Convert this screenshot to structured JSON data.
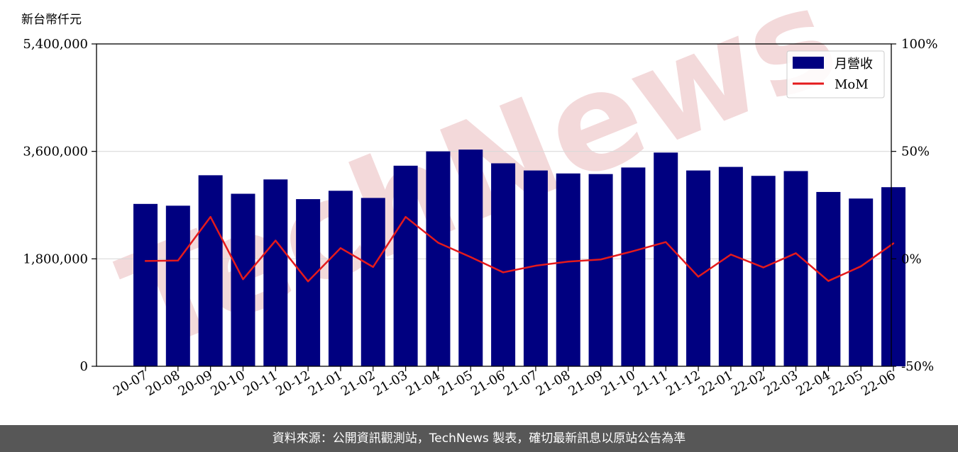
{
  "footer": {
    "source_text": "資料來源：公開資訊觀測站，TechNews 製表，確切最新訊息以原站公告為準"
  },
  "watermark": {
    "text": "TechNews",
    "color": "#f3d9da"
  },
  "colors": {
    "bar": "#000080",
    "line": "#e41a1c",
    "grid": "#d9d9d9"
  },
  "chart_data": {
    "type": "bar",
    "y_unit_label": "新台幣仟元",
    "categories": [
      "20-07",
      "20-08",
      "20-09",
      "20-10",
      "20-11",
      "20-12",
      "21-01",
      "21-02",
      "21-03",
      "21-04",
      "21-05",
      "21-06",
      "21-07",
      "21-08",
      "21-09",
      "21-10",
      "21-11",
      "21-12",
      "22-01",
      "22-02",
      "22-03",
      "22-04",
      "22-05",
      "22-06"
    ],
    "series": [
      {
        "name": "月營收",
        "type": "bar",
        "axis": "left",
        "values": [
          2720000,
          2690000,
          3200000,
          2890000,
          3130000,
          2800000,
          2940000,
          2820000,
          3360000,
          3600000,
          3630000,
          3400000,
          3280000,
          3230000,
          3220000,
          3330000,
          3580000,
          3280000,
          3340000,
          3190000,
          3270000,
          2920000,
          2810000,
          3000000
        ]
      },
      {
        "name": "MoM",
        "type": "line",
        "axis": "right",
        "values": [
          -1.0,
          -0.8,
          19.5,
          -9.5,
          8.5,
          -10.5,
          5.0,
          -3.8,
          19.5,
          7.5,
          0.8,
          -6.3,
          -3.2,
          -1.3,
          -0.3,
          3.6,
          7.8,
          -8.3,
          2.0,
          -4.0,
          2.6,
          -10.3,
          -3.5,
          7.2
        ]
      }
    ],
    "y_left": {
      "lim": [
        0,
        5400000
      ],
      "ticks": [
        0,
        1800000,
        3600000,
        5400000
      ],
      "tick_labels": [
        "0",
        "1,800,000",
        "3,600,000",
        "5,400,000"
      ]
    },
    "y_right": {
      "lim": [
        -50,
        100
      ],
      "ticks": [
        -50,
        0,
        50,
        100
      ],
      "tick_labels": [
        "-50%",
        "0%",
        "50%",
        "100%"
      ]
    },
    "grid": "horizontal",
    "legend_position": "top-right"
  }
}
